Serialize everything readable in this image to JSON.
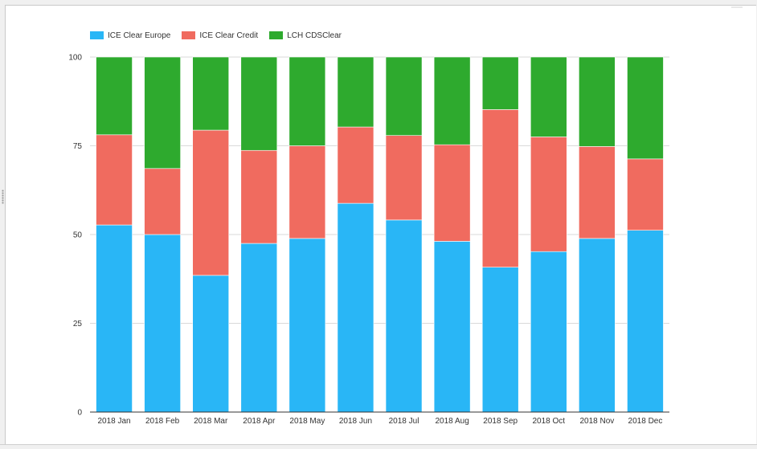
{
  "chart_data": {
    "type": "bar",
    "stacked": true,
    "categories": [
      "2018 Jan",
      "2018 Feb",
      "2018 Mar",
      "2018 Apr",
      "2018 May",
      "2018 Jun",
      "2018 Jul",
      "2018 Aug",
      "2018 Sep",
      "2018 Oct",
      "2018 Nov",
      "2018 Dec"
    ],
    "series": [
      {
        "name": "ICE Clear Europe",
        "color": "#29b6f6",
        "values": [
          52.7,
          50.0,
          38.5,
          47.5,
          48.9,
          58.8,
          54.1,
          48.1,
          40.8,
          45.2,
          48.9,
          51.2
        ]
      },
      {
        "name": "ICE Clear Credit",
        "color": "#f06b5f",
        "values": [
          25.4,
          18.6,
          40.9,
          26.2,
          26.1,
          21.5,
          23.8,
          27.2,
          44.4,
          32.3,
          25.9,
          20.1
        ]
      },
      {
        "name": "LCH CDSClear",
        "color": "#2eaa2e",
        "values": [
          21.9,
          31.4,
          20.6,
          26.3,
          25.0,
          19.7,
          22.1,
          24.7,
          14.8,
          22.5,
          25.2,
          28.7
        ]
      }
    ],
    "yticks": [
      0,
      25,
      50,
      75,
      100
    ],
    "ylim": [
      0,
      100
    ],
    "title": "",
    "xlabel": "",
    "ylabel": "",
    "grid": true,
    "legend_position": "top-left"
  }
}
